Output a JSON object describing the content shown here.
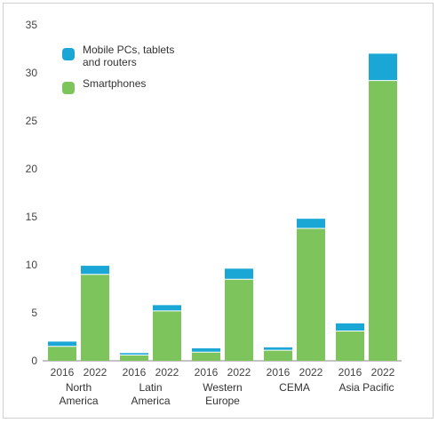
{
  "chart_data": {
    "type": "bar",
    "stacked": true,
    "ylim": [
      0,
      35
    ],
    "yticks": [
      0,
      5,
      10,
      15,
      20,
      25,
      30,
      35
    ],
    "grid": false,
    "legend_position": "top-left",
    "groups": [
      {
        "label": [
          "North",
          "America"
        ],
        "bars": [
          {
            "year": "2016",
            "Smartphones": 1.5,
            "Mobile": 0.5
          },
          {
            "year": "2022",
            "Smartphones": 9.0,
            "Mobile": 0.9
          }
        ]
      },
      {
        "label": [
          "Latin",
          "America"
        ],
        "bars": [
          {
            "year": "2016",
            "Smartphones": 0.6,
            "Mobile": 0.2
          },
          {
            "year": "2022",
            "Smartphones": 5.2,
            "Mobile": 0.6
          }
        ]
      },
      {
        "label": [
          "Western",
          "Europe"
        ],
        "bars": [
          {
            "year": "2016",
            "Smartphones": 0.9,
            "Mobile": 0.4
          },
          {
            "year": "2022",
            "Smartphones": 8.5,
            "Mobile": 1.1
          }
        ]
      },
      {
        "label": [
          "CEMA"
        ],
        "bars": [
          {
            "year": "2016",
            "Smartphones": 1.1,
            "Mobile": 0.3
          },
          {
            "year": "2022",
            "Smartphones": 13.8,
            "Mobile": 1.0
          }
        ]
      },
      {
        "label": [
          "Asia Pacific"
        ],
        "bars": [
          {
            "year": "2016",
            "Smartphones": 3.1,
            "Mobile": 0.8
          },
          {
            "year": "2022",
            "Smartphones": 29.2,
            "Mobile": 2.8
          }
        ]
      }
    ],
    "series": [
      {
        "key": "Mobile",
        "name": "Mobile PCs, tablets and routers",
        "legend_lines": [
          "Mobile PCs, tablets",
          "and routers"
        ],
        "color": "#1aa7d6"
      },
      {
        "key": "Smartphones",
        "name": "Smartphones",
        "legend_lines": [
          "Smartphones"
        ],
        "color": "#7cc45b"
      }
    ]
  }
}
